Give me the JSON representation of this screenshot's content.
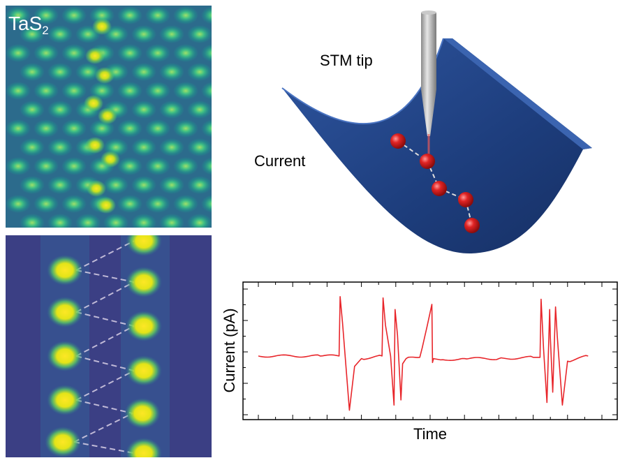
{
  "stm_image": {
    "material_base": "TaS",
    "material_subscript": "2"
  },
  "schematic": {
    "tip_label": "STM tip",
    "current_label": "Current",
    "colors": {
      "surface": "#1f3f7a",
      "atom": "#d81b1b",
      "tip": "#a9a9a9"
    }
  },
  "chart_data": {
    "type": "line",
    "title": "",
    "xlabel": "Time",
    "ylabel": "Current (pA)",
    "xlim": [
      0,
      100
    ],
    "ylim": [
      0,
      100
    ],
    "grid": false,
    "series": [
      {
        "color": "#e8252a",
        "x": [
          0,
          18,
          23.5,
          23.8,
          24.5,
          26.5,
          28,
          30,
          36,
          36.3,
          37,
          38.5,
          39.5,
          39.8,
          40.5,
          41.5,
          42,
          43,
          47,
          50.5,
          50.7,
          51,
          53,
          60,
          70,
          80,
          82,
          82.3,
          83,
          84,
          84.8,
          85,
          85.7,
          86.5,
          87,
          88.5,
          90,
          96
        ],
        "y": [
          46,
          46,
          46,
          92,
          72,
          4,
          38,
          44,
          46,
          91,
          70,
          46,
          8,
          82,
          62,
          12,
          40,
          44,
          45,
          86,
          41,
          44,
          43,
          44,
          44,
          45,
          45,
          90,
          52,
          10,
          82,
          60,
          18,
          84,
          62,
          8,
          42,
          46
        ]
      }
    ]
  }
}
